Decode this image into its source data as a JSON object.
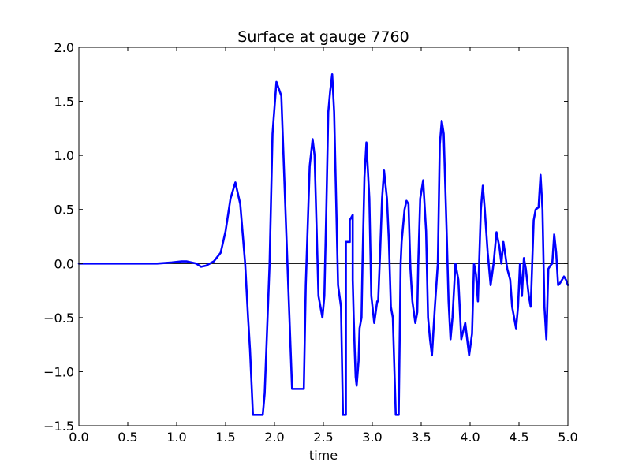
{
  "chart_data": {
    "type": "line",
    "title": "Surface at gauge 7760",
    "xlabel": "time",
    "ylabel": "",
    "xlim": [
      0,
      5
    ],
    "ylim": [
      -1.5,
      2.0
    ],
    "xticks": [
      0.0,
      0.5,
      1.0,
      1.5,
      2.0,
      2.5,
      3.0,
      3.5,
      4.0,
      4.5,
      5.0
    ],
    "xtick_labels": [
      "0.0",
      "0.5",
      "1.0",
      "1.5",
      "2.0",
      "2.5",
      "3.0",
      "3.5",
      "4.0",
      "4.5",
      "5.0"
    ],
    "yticks": [
      -1.5,
      -1.0,
      -0.5,
      0.0,
      0.5,
      1.0,
      1.5,
      2.0
    ],
    "ytick_labels": [
      "−1.5",
      "−1.0",
      "−0.5",
      "0.0",
      "0.5",
      "1.0",
      "1.5",
      "2.0"
    ],
    "grid": false,
    "reference_line": {
      "y": 0,
      "color": "#000000"
    },
    "series": [
      {
        "color": "#0000ff",
        "x": [
          0.0,
          0.8,
          0.95,
          1.05,
          1.1,
          1.2,
          1.25,
          1.3,
          1.38,
          1.45,
          1.5,
          1.55,
          1.6,
          1.65,
          1.7,
          1.73,
          1.75,
          1.78,
          1.88,
          1.9,
          1.95,
          1.98,
          2.02,
          2.07,
          2.12,
          2.18,
          2.22,
          2.3,
          2.32,
          2.36,
          2.39,
          2.41,
          2.45,
          2.49,
          2.51,
          2.53,
          2.55,
          2.57,
          2.59,
          2.61,
          2.63,
          2.65,
          2.68,
          2.7,
          2.72,
          2.73,
          2.73,
          2.77,
          2.77,
          2.8,
          2.8,
          2.81,
          2.82,
          2.83,
          2.84,
          2.86,
          2.87,
          2.89,
          2.9,
          2.92,
          2.94,
          2.97,
          2.99,
          3.02,
          3.05,
          3.06,
          3.08,
          3.1,
          3.12,
          3.15,
          3.17,
          3.19,
          3.21,
          3.24,
          3.27,
          3.29,
          3.3,
          3.31,
          3.33,
          3.35,
          3.37,
          3.39,
          3.41,
          3.44,
          3.46,
          3.47,
          3.49,
          3.52,
          3.55,
          3.57,
          3.59,
          3.61,
          3.64,
          3.67,
          3.69,
          3.71,
          3.73,
          3.76,
          3.78,
          3.8,
          3.82,
          3.85,
          3.88,
          3.91,
          3.95,
          3.99,
          4.02,
          4.04,
          4.06,
          4.08,
          4.11,
          4.13,
          4.15,
          4.18,
          4.21,
          4.24,
          4.27,
          4.3,
          4.32,
          4.34,
          4.36,
          4.38,
          4.41,
          4.43,
          4.45,
          4.47,
          4.49,
          4.51,
          4.53,
          4.55,
          4.57,
          4.6,
          4.62,
          4.65,
          4.67,
          4.7,
          4.72,
          4.74,
          4.76,
          4.78,
          4.8,
          4.82,
          4.84,
          4.86,
          4.88,
          4.9,
          4.92,
          4.94,
          4.96,
          4.98,
          5.0
        ],
        "y": [
          0.0,
          0.0,
          0.01,
          0.02,
          0.02,
          0.0,
          -0.03,
          -0.02,
          0.02,
          0.1,
          0.3,
          0.6,
          0.75,
          0.55,
          0.0,
          -0.5,
          -0.8,
          -1.4,
          -1.4,
          -1.2,
          0.0,
          1.2,
          1.68,
          1.55,
          0.3,
          -1.16,
          -1.16,
          -1.16,
          -0.2,
          0.9,
          1.15,
          1.0,
          -0.3,
          -0.5,
          -0.3,
          0.5,
          1.4,
          1.6,
          1.75,
          1.4,
          0.6,
          -0.2,
          -0.4,
          -1.4,
          -1.4,
          -1.4,
          0.2,
          0.2,
          0.4,
          0.45,
          -0.15,
          -0.5,
          -0.8,
          -1.05,
          -1.13,
          -0.9,
          -0.6,
          -0.5,
          0.0,
          0.8,
          1.12,
          0.6,
          -0.3,
          -0.55,
          -0.35,
          -0.35,
          0.1,
          0.6,
          0.86,
          0.6,
          0.2,
          -0.4,
          -0.5,
          -1.4,
          -1.4,
          0.0,
          0.2,
          0.3,
          0.5,
          0.58,
          0.55,
          -0.05,
          -0.35,
          -0.55,
          -0.45,
          0.0,
          0.6,
          0.77,
          0.3,
          -0.5,
          -0.7,
          -0.85,
          -0.4,
          0.0,
          1.1,
          1.32,
          1.2,
          0.3,
          -0.35,
          -0.7,
          -0.5,
          0.0,
          -0.15,
          -0.7,
          -0.55,
          -0.85,
          -0.65,
          0.0,
          -0.1,
          -0.35,
          0.5,
          0.72,
          0.5,
          0.1,
          -0.2,
          0.0,
          0.29,
          0.15,
          0.0,
          0.2,
          0.08,
          -0.05,
          -0.15,
          -0.4,
          -0.5,
          -0.6,
          -0.4,
          0.0,
          -0.3,
          0.05,
          -0.05,
          -0.3,
          -0.4,
          0.4,
          0.5,
          0.52,
          0.82,
          0.5,
          -0.4,
          -0.7,
          -0.05,
          -0.02,
          0.0,
          0.27,
          0.1,
          -0.2,
          -0.18,
          -0.15,
          -0.12,
          -0.15,
          -0.2
        ]
      }
    ]
  }
}
